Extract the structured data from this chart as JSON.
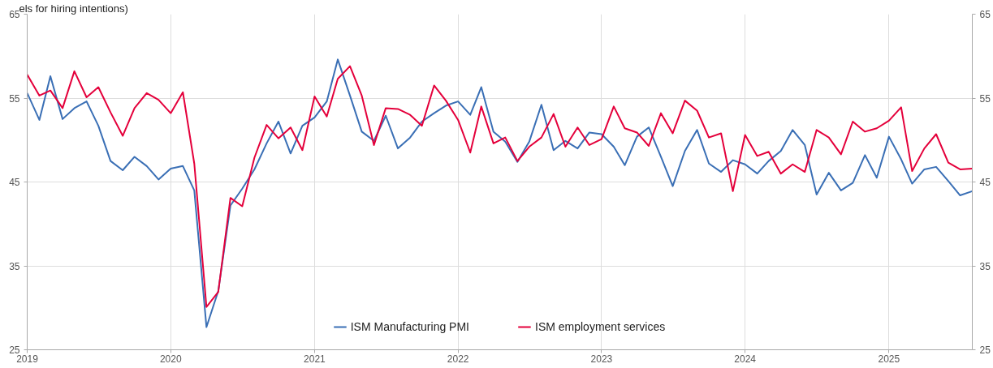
{
  "chart_data": {
    "type": "line",
    "title": "els for hiring intentions)",
    "xlim": [
      "2019-01",
      "2025-08"
    ],
    "xticks": [
      "2019",
      "2020",
      "2021",
      "2022",
      "2023",
      "2024",
      "2025"
    ],
    "ylim": [
      25,
      65
    ],
    "yticks": [
      25,
      35,
      45,
      55,
      65
    ],
    "y2lim": [
      25,
      65
    ],
    "y2ticks": [
      25,
      35,
      45,
      55,
      65
    ],
    "grid": true,
    "legend": "bottom",
    "line_style": "solid",
    "marker": "none",
    "x": [
      "2019-01",
      "2019-02",
      "2019-03",
      "2019-04",
      "2019-05",
      "2019-06",
      "2019-07",
      "2019-08",
      "2019-09",
      "2019-10",
      "2019-11",
      "2019-12",
      "2020-01",
      "2020-02",
      "2020-03",
      "2020-04",
      "2020-05",
      "2020-06",
      "2020-07",
      "2020-08",
      "2020-09",
      "2020-10",
      "2020-11",
      "2020-12",
      "2021-01",
      "2021-02",
      "2021-03",
      "2021-04",
      "2021-05",
      "2021-06",
      "2021-07",
      "2021-08",
      "2021-09",
      "2021-10",
      "2021-11",
      "2021-12",
      "2022-01",
      "2022-02",
      "2022-03",
      "2022-04",
      "2022-05",
      "2022-06",
      "2022-07",
      "2022-08",
      "2022-09",
      "2022-10",
      "2022-11",
      "2022-12",
      "2023-01",
      "2023-02",
      "2023-03",
      "2023-04",
      "2023-05",
      "2023-06",
      "2023-07",
      "2023-08",
      "2023-09",
      "2023-10",
      "2023-11",
      "2023-12",
      "2024-01",
      "2024-02",
      "2024-03",
      "2024-04",
      "2024-05",
      "2024-06",
      "2024-07",
      "2024-08",
      "2024-09",
      "2024-10",
      "2024-11",
      "2024-12",
      "2025-01",
      "2025-02",
      "2025-03",
      "2025-04",
      "2025-05",
      "2025-06",
      "2025-07",
      "2025-08"
    ],
    "series": [
      {
        "name": "ISM Manufacturing PMI",
        "color": "#3a6fb5",
        "values": [
          55.6,
          52.4,
          57.6,
          52.5,
          53.8,
          54.6,
          51.7,
          47.5,
          46.4,
          48.0,
          46.9,
          45.3,
          46.6,
          46.9,
          44.0,
          27.7,
          32.0,
          42.2,
          44.2,
          46.5,
          49.6,
          52.2,
          48.4,
          51.7,
          52.7,
          54.6,
          59.6,
          55.3,
          51.0,
          49.9,
          52.9,
          49.0,
          50.3,
          52.2,
          53.2,
          54.1,
          54.6,
          53.0,
          56.3,
          51.0,
          49.8,
          47.4,
          49.8,
          54.2,
          48.8,
          49.9,
          49.0,
          50.9,
          50.7,
          49.2,
          47.0,
          50.4,
          51.5,
          48.0,
          44.5,
          48.7,
          51.2,
          47.2,
          46.2,
          47.6,
          47.1,
          46.0,
          47.5,
          48.7,
          51.2,
          49.4,
          43.5,
          46.1,
          44.0,
          44.9,
          48.2,
          45.5,
          50.4,
          47.7,
          44.8,
          46.5,
          46.8,
          45.1,
          43.4,
          43.9
        ]
      },
      {
        "name": "ISM employment services",
        "color": "#e4003b",
        "values": [
          57.8,
          55.3,
          55.9,
          53.8,
          58.2,
          55.1,
          56.3,
          53.3,
          50.5,
          53.8,
          55.6,
          54.8,
          53.2,
          55.7,
          47.2,
          30.1,
          31.9,
          43.1,
          42.1,
          47.9,
          51.8,
          50.2,
          51.5,
          48.8,
          55.2,
          52.8,
          57.3,
          58.8,
          55.3,
          49.4,
          53.8,
          53.7,
          53.0,
          51.7,
          56.5,
          54.7,
          52.4,
          48.5,
          54.0,
          49.6,
          50.3,
          47.5,
          49.2,
          50.3,
          53.1,
          49.2,
          51.5,
          49.4,
          50.1,
          54.0,
          51.4,
          50.9,
          49.3,
          53.2,
          50.8,
          54.7,
          53.5,
          50.3,
          50.8,
          43.9,
          50.6,
          48.1,
          48.6,
          46.0,
          47.1,
          46.2,
          51.2,
          50.3,
          48.3,
          52.2,
          51.0,
          51.4,
          52.3,
          53.9,
          46.3,
          49.0,
          50.7,
          47.3,
          46.5,
          46.6
        ]
      }
    ]
  }
}
